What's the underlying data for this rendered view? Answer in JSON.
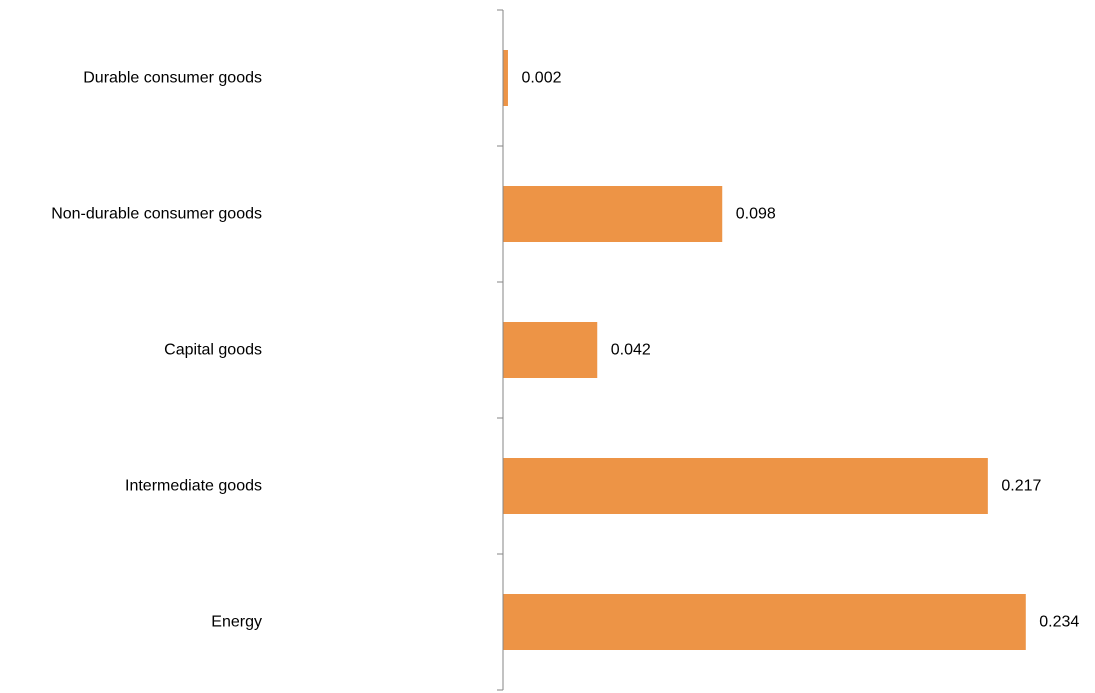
{
  "chart_data": {
    "type": "bar",
    "orientation": "horizontal",
    "title": "",
    "xlabel": "",
    "ylabel": "",
    "categories": [
      "Durable consumer goods",
      "Non-durable consumer goods",
      "Capital goods",
      "Intermediate goods",
      "Energy"
    ],
    "values": [
      0.002,
      0.098,
      0.042,
      0.217,
      0.234
    ],
    "value_labels": [
      "0.002",
      "0.098",
      "0.042",
      "0.217",
      "0.234"
    ],
    "xlim": [
      0,
      0.25
    ],
    "grid": false,
    "legend": "none",
    "bar_color": "#ED9446",
    "axis_color": "#868686"
  }
}
